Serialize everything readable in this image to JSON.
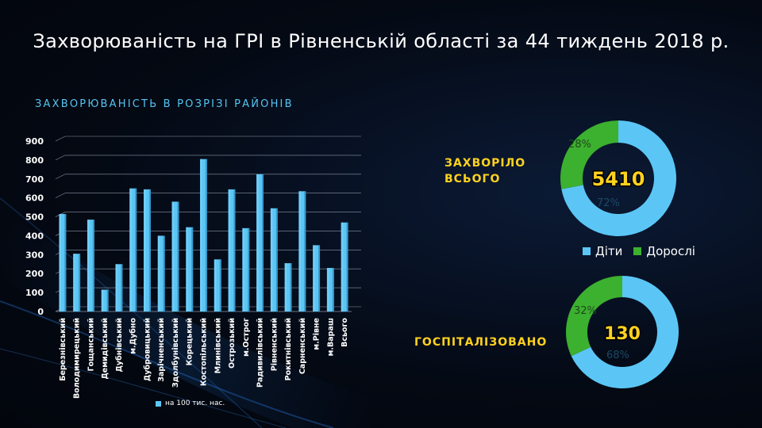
{
  "title": "Захворюваність на ГРІ в Рівненській області за 44 тиждень 2018 р.",
  "subtitle": "ЗАХВОРЮВАНІСТЬ В РОЗРІЗІ РАЙОНІВ",
  "colors": {
    "children": "#5bc6f5",
    "adults": "#3cb02f",
    "accent": "#ffd21f",
    "bar": "#5bc6f5"
  },
  "chart_data": [
    {
      "type": "bar",
      "title": "",
      "xlabel": "",
      "ylabel": "",
      "ylim": [
        0,
        900
      ],
      "yticks": [
        0,
        100,
        200,
        300,
        400,
        500,
        600,
        700,
        800,
        900
      ],
      "grid": true,
      "legend_position": "bottom",
      "categories": [
        "Березнівський",
        "Володимирецький",
        "Гощанський",
        "Демидівський",
        "Дубнівський",
        "м.Дубно",
        "Дубровицький",
        "Зарічненський",
        "Здолбунівський",
        "Корецький",
        "Костопільський",
        "Млинівський",
        "Острозький",
        "м.Острог",
        "Радивилівський",
        "Рівненський",
        "Рокитнівський",
        "Сарненський",
        "м.Рівне",
        "м.Вараш",
        "Всього"
      ],
      "series": [
        {
          "name": "на 100 тис. нас.",
          "values": [
            515,
            305,
            485,
            115,
            250,
            650,
            645,
            400,
            580,
            445,
            805,
            275,
            645,
            440,
            725,
            545,
            255,
            635,
            350,
            230,
            470
          ]
        }
      ]
    },
    {
      "type": "pie",
      "title": "ЗАХВОРІЛО ВСЬОГО",
      "total": "5410",
      "categories": [
        "Діти",
        "Дорослі"
      ],
      "values": [
        72,
        28
      ],
      "labels": [
        "72%",
        "28%"
      ]
    },
    {
      "type": "pie",
      "title": "ГОСПІТАЛІЗОВАНО",
      "total": "130",
      "categories": [
        "Діти",
        "Дорослі"
      ],
      "values": [
        68,
        32
      ],
      "labels": [
        "68%",
        "32%"
      ]
    }
  ],
  "kpi": {
    "sick_line1": "ЗАХВОРІЛО",
    "sick_line2": "ВСЬОГО",
    "hosp": "ГОСПІТАЛІЗОВАНО"
  },
  "donut_legend": {
    "children": "Діти",
    "adults": "Дорослі"
  }
}
